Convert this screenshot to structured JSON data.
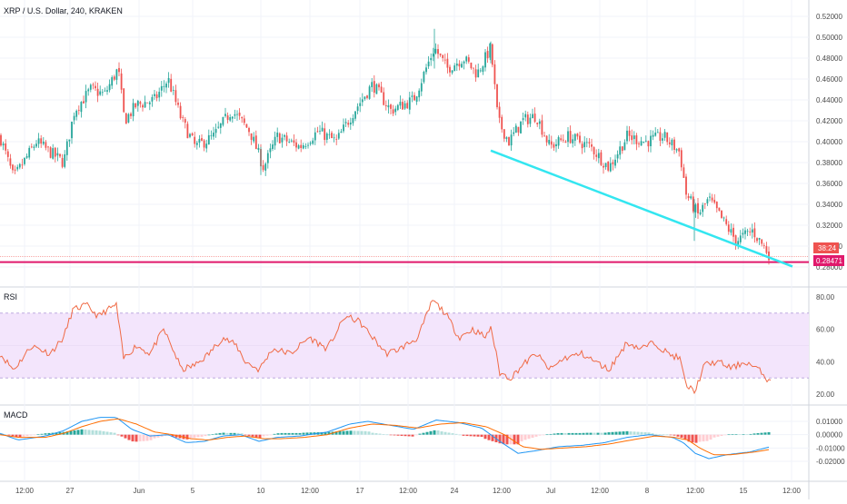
{
  "header": {
    "title": "XRP / U.S. Dollar, 240, KRAKEN"
  },
  "colors": {
    "up": "#26a69a",
    "down": "#ef5350",
    "trendline": "#33e6f0",
    "support": "#e0196c",
    "rsi": "#f06a45",
    "rsi_band": "#f3e5fc",
    "rsi_band_border": "#b39ddb",
    "macd_line": "#2196f3",
    "signal_line": "#ff6d00",
    "hist_up_strong": "#26a69a",
    "hist_up_weak": "#b2dfdb",
    "hist_down_strong": "#ef5350",
    "hist_down_weak": "#ffcdd2",
    "grid": "#f0f3fa",
    "axis_text": "#4a4a4a"
  },
  "price_labels": {
    "countdown": "38:24",
    "support": "0.28471",
    "last_price": "0.29000"
  },
  "chart_data": [
    {
      "type": "candlestick",
      "title": "XRP / U.S. Dollar, 240, KRAKEN",
      "ylim": [
        0.28,
        0.52
      ],
      "y_ticks": [
        "0.52000",
        "0.50000",
        "0.48000",
        "0.46000",
        "0.44000",
        "0.42000",
        "0.40000",
        "0.38000",
        "0.36000",
        "0.34000",
        "0.32000",
        "0.30000",
        "0.28000"
      ],
      "x_tick_labels": [
        "12:00",
        "27",
        "Jun",
        "5",
        "10",
        "12:00",
        "17",
        "12:00",
        "24",
        "12:00",
        "Jul",
        "12:00",
        "8",
        "12:00",
        "15",
        "12:00"
      ],
      "key_points": [
        {
          "x": 0,
          "y": 0.405
        },
        {
          "x": 15,
          "y": 0.365
        },
        {
          "x": 40,
          "y": 0.4
        },
        {
          "x": 70,
          "y": 0.38
        },
        {
          "x": 82,
          "y": 0.43
        },
        {
          "x": 100,
          "y": 0.45
        },
        {
          "x": 115,
          "y": 0.445
        },
        {
          "x": 130,
          "y": 0.47
        },
        {
          "x": 137,
          "y": 0.42
        },
        {
          "x": 150,
          "y": 0.435
        },
        {
          "x": 170,
          "y": 0.44
        },
        {
          "x": 185,
          "y": 0.46
        },
        {
          "x": 200,
          "y": 0.42
        },
        {
          "x": 215,
          "y": 0.395
        },
        {
          "x": 235,
          "y": 0.405
        },
        {
          "x": 255,
          "y": 0.43
        },
        {
          "x": 275,
          "y": 0.41
        },
        {
          "x": 290,
          "y": 0.375
        },
        {
          "x": 305,
          "y": 0.405
        },
        {
          "x": 330,
          "y": 0.395
        },
        {
          "x": 350,
          "y": 0.41
        },
        {
          "x": 370,
          "y": 0.4
        },
        {
          "x": 390,
          "y": 0.43
        },
        {
          "x": 410,
          "y": 0.455
        },
        {
          "x": 430,
          "y": 0.43
        },
        {
          "x": 455,
          "y": 0.44
        },
        {
          "x": 478,
          "y": 0.49
        },
        {
          "x": 492,
          "y": 0.47
        },
        {
          "x": 510,
          "y": 0.48
        },
        {
          "x": 525,
          "y": 0.465
        },
        {
          "x": 540,
          "y": 0.49
        },
        {
          "x": 548,
          "y": 0.42
        },
        {
          "x": 560,
          "y": 0.4
        },
        {
          "x": 575,
          "y": 0.42
        },
        {
          "x": 590,
          "y": 0.425
        },
        {
          "x": 605,
          "y": 0.395
        },
        {
          "x": 625,
          "y": 0.405
        },
        {
          "x": 650,
          "y": 0.395
        },
        {
          "x": 670,
          "y": 0.375
        },
        {
          "x": 690,
          "y": 0.405
        },
        {
          "x": 710,
          "y": 0.4
        },
        {
          "x": 730,
          "y": 0.405
        },
        {
          "x": 748,
          "y": 0.39
        },
        {
          "x": 755,
          "y": 0.35
        },
        {
          "x": 768,
          "y": 0.33
        },
        {
          "x": 780,
          "y": 0.345
        },
        {
          "x": 795,
          "y": 0.325
        },
        {
          "x": 810,
          "y": 0.305
        },
        {
          "x": 828,
          "y": 0.315
        },
        {
          "x": 840,
          "y": 0.3
        },
        {
          "x": 848,
          "y": 0.29
        }
      ],
      "trendline": [
        {
          "x": 540,
          "y": 0.3915
        },
        {
          "x": 872,
          "y": 0.2805
        }
      ],
      "support_level": 0.28471,
      "last_price": 0.29
    },
    {
      "type": "line",
      "title": "RSI",
      "ylim": [
        15,
        85
      ],
      "y_ticks": [
        "80.00",
        "60.00",
        "40.00",
        "20.00"
      ],
      "band": [
        30,
        70
      ],
      "key_points": [
        {
          "x": 0,
          "y": 45
        },
        {
          "x": 15,
          "y": 35
        },
        {
          "x": 35,
          "y": 50
        },
        {
          "x": 55,
          "y": 45
        },
        {
          "x": 70,
          "y": 55
        },
        {
          "x": 80,
          "y": 72
        },
        {
          "x": 95,
          "y": 75
        },
        {
          "x": 108,
          "y": 68
        },
        {
          "x": 118,
          "y": 72
        },
        {
          "x": 128,
          "y": 75
        },
        {
          "x": 136,
          "y": 42
        },
        {
          "x": 150,
          "y": 50
        },
        {
          "x": 165,
          "y": 45
        },
        {
          "x": 180,
          "y": 60
        },
        {
          "x": 190,
          "y": 48
        },
        {
          "x": 200,
          "y": 35
        },
        {
          "x": 215,
          "y": 38
        },
        {
          "x": 230,
          "y": 45
        },
        {
          "x": 245,
          "y": 55
        },
        {
          "x": 260,
          "y": 50
        },
        {
          "x": 270,
          "y": 40
        },
        {
          "x": 285,
          "y": 35
        },
        {
          "x": 300,
          "y": 48
        },
        {
          "x": 320,
          "y": 45
        },
        {
          "x": 340,
          "y": 55
        },
        {
          "x": 360,
          "y": 48
        },
        {
          "x": 380,
          "y": 68
        },
        {
          "x": 395,
          "y": 65
        },
        {
          "x": 410,
          "y": 55
        },
        {
          "x": 425,
          "y": 45
        },
        {
          "x": 440,
          "y": 48
        },
        {
          "x": 460,
          "y": 55
        },
        {
          "x": 476,
          "y": 78
        },
        {
          "x": 490,
          "y": 70
        },
        {
          "x": 505,
          "y": 55
        },
        {
          "x": 520,
          "y": 60
        },
        {
          "x": 535,
          "y": 55
        },
        {
          "x": 540,
          "y": 62
        },
        {
          "x": 550,
          "y": 33
        },
        {
          "x": 562,
          "y": 30
        },
        {
          "x": 575,
          "y": 38
        },
        {
          "x": 590,
          "y": 45
        },
        {
          "x": 605,
          "y": 35
        },
        {
          "x": 620,
          "y": 42
        },
        {
          "x": 640,
          "y": 45
        },
        {
          "x": 655,
          "y": 40
        },
        {
          "x": 670,
          "y": 35
        },
        {
          "x": 690,
          "y": 52
        },
        {
          "x": 705,
          "y": 48
        },
        {
          "x": 720,
          "y": 52
        },
        {
          "x": 735,
          "y": 45
        },
        {
          "x": 748,
          "y": 42
        },
        {
          "x": 755,
          "y": 25
        },
        {
          "x": 765,
          "y": 22
        },
        {
          "x": 775,
          "y": 38
        },
        {
          "x": 790,
          "y": 40
        },
        {
          "x": 805,
          "y": 36
        },
        {
          "x": 820,
          "y": 40
        },
        {
          "x": 835,
          "y": 35
        },
        {
          "x": 848,
          "y": 27
        }
      ]
    },
    {
      "type": "line",
      "title": "MACD",
      "ylim": [
        -0.022,
        0.016
      ],
      "y_ticks": [
        "0.01000",
        "0.00000",
        "-0.01000",
        "-0.02000"
      ],
      "macd": [
        {
          "x": 0,
          "y": 0.001
        },
        {
          "x": 20,
          "y": -0.004
        },
        {
          "x": 50,
          "y": -0.001
        },
        {
          "x": 70,
          "y": 0.003
        },
        {
          "x": 90,
          "y": 0.01
        },
        {
          "x": 110,
          "y": 0.013
        },
        {
          "x": 128,
          "y": 0.013
        },
        {
          "x": 145,
          "y": 0.004
        },
        {
          "x": 165,
          "y": -0.001
        },
        {
          "x": 185,
          "y": 0.0
        },
        {
          "x": 205,
          "y": -0.006
        },
        {
          "x": 225,
          "y": -0.005
        },
        {
          "x": 245,
          "y": -0.001
        },
        {
          "x": 265,
          "y": 0.0
        },
        {
          "x": 285,
          "y": -0.005
        },
        {
          "x": 305,
          "y": -0.002
        },
        {
          "x": 330,
          "y": -0.001
        },
        {
          "x": 360,
          "y": 0.002
        },
        {
          "x": 385,
          "y": 0.008
        },
        {
          "x": 405,
          "y": 0.01
        },
        {
          "x": 430,
          "y": 0.007
        },
        {
          "x": 455,
          "y": 0.004
        },
        {
          "x": 480,
          "y": 0.011
        },
        {
          "x": 505,
          "y": 0.009
        },
        {
          "x": 530,
          "y": 0.005
        },
        {
          "x": 550,
          "y": -0.005
        },
        {
          "x": 570,
          "y": -0.014
        },
        {
          "x": 590,
          "y": -0.012
        },
        {
          "x": 615,
          "y": -0.009
        },
        {
          "x": 640,
          "y": -0.008
        },
        {
          "x": 665,
          "y": -0.006
        },
        {
          "x": 690,
          "y": -0.002
        },
        {
          "x": 715,
          "y": 0.0
        },
        {
          "x": 740,
          "y": -0.002
        },
        {
          "x": 752,
          "y": -0.006
        },
        {
          "x": 765,
          "y": -0.014
        },
        {
          "x": 780,
          "y": -0.018
        },
        {
          "x": 800,
          "y": -0.015
        },
        {
          "x": 825,
          "y": -0.013
        },
        {
          "x": 848,
          "y": -0.009
        }
      ],
      "signal": [
        {
          "x": 0,
          "y": 0.0
        },
        {
          "x": 20,
          "y": -0.002
        },
        {
          "x": 50,
          "y": -0.002
        },
        {
          "x": 70,
          "y": 0.001
        },
        {
          "x": 90,
          "y": 0.006
        },
        {
          "x": 110,
          "y": 0.01
        },
        {
          "x": 130,
          "y": 0.012
        },
        {
          "x": 150,
          "y": 0.008
        },
        {
          "x": 170,
          "y": 0.002
        },
        {
          "x": 190,
          "y": 0.0
        },
        {
          "x": 210,
          "y": -0.003
        },
        {
          "x": 230,
          "y": -0.004
        },
        {
          "x": 250,
          "y": -0.002
        },
        {
          "x": 270,
          "y": -0.001
        },
        {
          "x": 290,
          "y": -0.003
        },
        {
          "x": 310,
          "y": -0.003
        },
        {
          "x": 335,
          "y": -0.002
        },
        {
          "x": 360,
          "y": 0.0
        },
        {
          "x": 385,
          "y": 0.005
        },
        {
          "x": 410,
          "y": 0.008
        },
        {
          "x": 435,
          "y": 0.007
        },
        {
          "x": 460,
          "y": 0.005
        },
        {
          "x": 485,
          "y": 0.008
        },
        {
          "x": 510,
          "y": 0.009
        },
        {
          "x": 535,
          "y": 0.006
        },
        {
          "x": 555,
          "y": 0.0
        },
        {
          "x": 575,
          "y": -0.009
        },
        {
          "x": 595,
          "y": -0.011
        },
        {
          "x": 620,
          "y": -0.01
        },
        {
          "x": 645,
          "y": -0.009
        },
        {
          "x": 670,
          "y": -0.007
        },
        {
          "x": 695,
          "y": -0.004
        },
        {
          "x": 720,
          "y": -0.001
        },
        {
          "x": 742,
          "y": -0.002
        },
        {
          "x": 757,
          "y": -0.004
        },
        {
          "x": 770,
          "y": -0.01
        },
        {
          "x": 785,
          "y": -0.015
        },
        {
          "x": 805,
          "y": -0.015
        },
        {
          "x": 830,
          "y": -0.013
        },
        {
          "x": 848,
          "y": -0.011
        }
      ]
    }
  ],
  "panes": {
    "rsi_label": "RSI",
    "macd_label": "MACD"
  }
}
